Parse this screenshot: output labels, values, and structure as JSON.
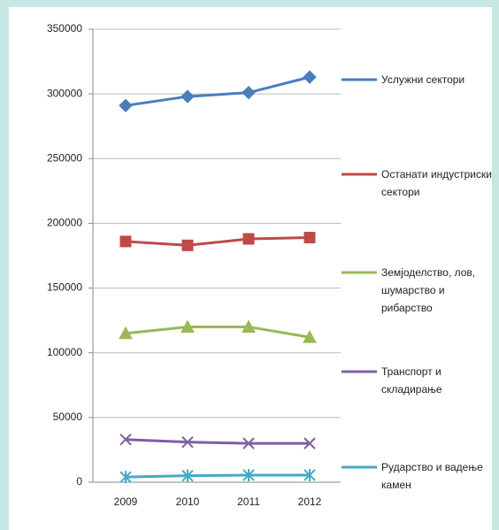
{
  "chart_data": {
    "type": "line",
    "x": [
      "2009",
      "2010",
      "2011",
      "2012"
    ],
    "series": [
      {
        "name": "Услужни сектори",
        "color": "#4a7ebb",
        "marker": "diamond",
        "values": [
          291000,
          298000,
          301000,
          313000
        ]
      },
      {
        "name": "Останати индустриски сектори",
        "color": "#be4b48",
        "marker": "square",
        "values": [
          186000,
          183000,
          188000,
          189000
        ]
      },
      {
        "name": "Земјоделство, лов, шумарство и рибарство",
        "color": "#98b954",
        "marker": "triangle",
        "values": [
          115000,
          120000,
          120000,
          112000
        ]
      },
      {
        "name": "Транспорт и складирање",
        "color": "#7d60a0",
        "marker": "x",
        "values": [
          33000,
          31000,
          30000,
          30000
        ]
      },
      {
        "name": "Рударство и вадење камен",
        "color": "#46aac5",
        "marker": "star",
        "values": [
          4000,
          5000,
          5500,
          5500
        ]
      }
    ],
    "ylim": [
      0,
      350000
    ],
    "yticks": [
      0,
      50000,
      100000,
      150000,
      200000,
      250000,
      300000,
      350000
    ],
    "grid": true,
    "legend": "right"
  }
}
